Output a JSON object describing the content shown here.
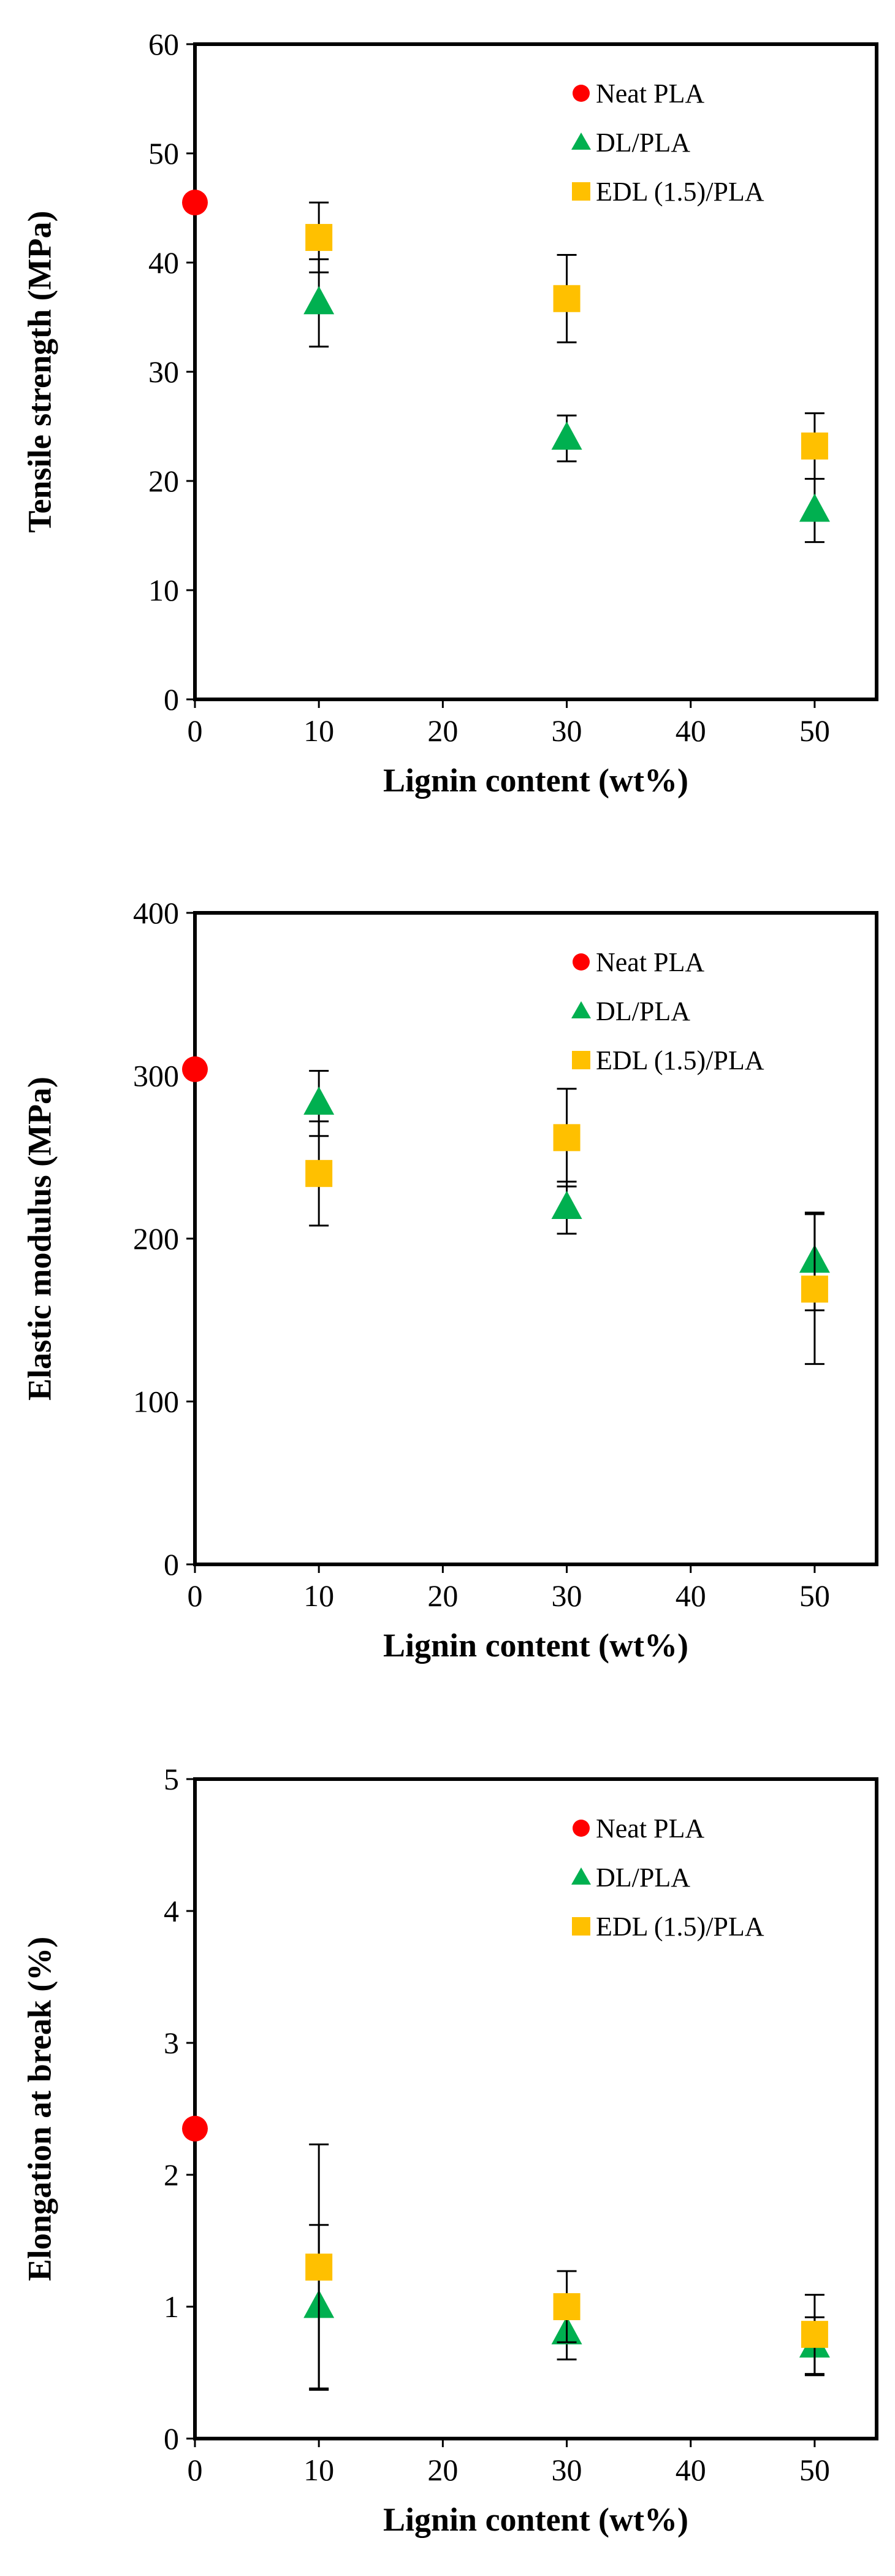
{
  "chart_data": [
    {
      "type": "scatter",
      "title": "",
      "xlabel": "Lignin content (wt%)",
      "ylabel": "Tensile strength (MPa)",
      "xlim": [
        0,
        55
      ],
      "ylim": [
        0,
        60
      ],
      "xticks": [
        0,
        10,
        20,
        30,
        40,
        50
      ],
      "yticks": [
        0,
        10,
        20,
        30,
        40,
        50,
        60
      ],
      "legend_position": "top-right",
      "series": [
        {
          "name": "Neat PLA",
          "marker": "circle",
          "color": "#ff0000",
          "points": [
            {
              "x": 0,
              "y": 45.5,
              "err": 0
            }
          ]
        },
        {
          "name": "DL/PLA",
          "marker": "triangle",
          "color": "#00b050",
          "points": [
            {
              "x": 10,
              "y": 36.3,
              "err": 4
            },
            {
              "x": 30,
              "y": 23.9,
              "err": 2.1
            },
            {
              "x": 50,
              "y": 17.3,
              "err": 2.9
            }
          ]
        },
        {
          "name": "EDL (1.5)/PLA",
          "marker": "square",
          "color": "#ffc000",
          "points": [
            {
              "x": 10,
              "y": 42.3,
              "err": 3.2
            },
            {
              "x": 30,
              "y": 36.7,
              "err": 4
            },
            {
              "x": 50,
              "y": 23.2,
              "err": 3
            }
          ]
        }
      ]
    },
    {
      "type": "scatter",
      "title": "",
      "xlabel": "Lignin content (wt%)",
      "ylabel": "Elastic modulus  (MPa)",
      "xlim": [
        0,
        55
      ],
      "ylim": [
        0,
        400
      ],
      "xticks": [
        0,
        10,
        20,
        30,
        40,
        50
      ],
      "yticks": [
        0,
        100,
        200,
        300,
        400
      ],
      "legend_position": "top-right",
      "series": [
        {
          "name": "Neat PLA",
          "marker": "circle",
          "color": "#ff0000",
          "points": [
            {
              "x": 0,
              "y": 304,
              "err": 0
            }
          ]
        },
        {
          "name": "DL/PLA",
          "marker": "triangle",
          "color": "#00b050",
          "points": [
            {
              "x": 10,
              "y": 283,
              "err": 20
            },
            {
              "x": 30,
              "y": 219,
              "err": 16
            },
            {
              "x": 50,
              "y": 186,
              "err": 30
            }
          ]
        },
        {
          "name": "EDL (1.5)/PLA",
          "marker": "square",
          "color": "#ffc000",
          "points": [
            {
              "x": 10,
              "y": 240,
              "err": 32
            },
            {
              "x": 30,
              "y": 262,
              "err": 30
            },
            {
              "x": 50,
              "y": 169,
              "err": 46
            }
          ]
        }
      ]
    },
    {
      "type": "scatter",
      "title": "",
      "xlabel": "Lignin content (wt%)",
      "ylabel": "Elongation at break (%)",
      "xlim": [
        0,
        55
      ],
      "ylim": [
        0,
        5
      ],
      "xticks": [
        0,
        10,
        20,
        30,
        40,
        50
      ],
      "yticks": [
        0,
        1,
        2,
        3,
        4,
        5
      ],
      "legend_position": "top-right",
      "series": [
        {
          "name": "Neat PLA",
          "marker": "circle",
          "color": "#ff0000",
          "points": [
            {
              "x": 0,
              "y": 2.35,
              "err": 0
            }
          ]
        },
        {
          "name": "DL/PLA",
          "marker": "triangle",
          "color": "#00b050",
          "points": [
            {
              "x": 10,
              "y": 1.0,
              "err": 0.62
            },
            {
              "x": 30,
              "y": 0.8,
              "err": 0.2
            },
            {
              "x": 50,
              "y": 0.7,
              "err": 0.22
            }
          ]
        },
        {
          "name": "EDL (1.5)/PLA",
          "marker": "square",
          "color": "#ffc000",
          "points": [
            {
              "x": 10,
              "y": 1.3,
              "err": 0.93
            },
            {
              "x": 30,
              "y": 1.0,
              "err": 0.27
            },
            {
              "x": 50,
              "y": 0.79,
              "err": 0.3
            }
          ]
        }
      ]
    }
  ]
}
